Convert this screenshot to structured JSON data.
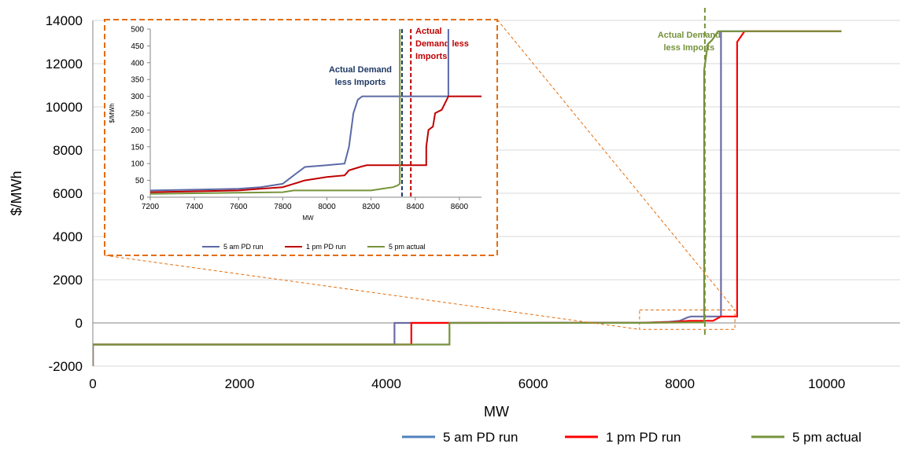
{
  "chart_data": [
    {
      "type": "line",
      "role": "main",
      "xlabel": "MW",
      "ylabel": "$/MWh",
      "xlim": [
        0,
        11000
      ],
      "ylim": [
        -2000,
        14000
      ],
      "xticks": [
        0,
        2000,
        4000,
        6000,
        8000,
        10000
      ],
      "yticks": [
        -2000,
        0,
        2000,
        4000,
        6000,
        8000,
        10000,
        12000,
        14000
      ],
      "grid": "horizontal",
      "legend_position": "bottom-right",
      "colors": {
        "5 am PD run": "#6b6ba6",
        "1 pm PD run": "#ff0000",
        "5 pm actual": "#76923c",
        "inset_box": "#e46c0a"
      },
      "legend": [
        {
          "name": "5 am PD run",
          "color": "#4f81bd"
        },
        {
          "name": "1 pm PD run",
          "color": "#ff0000"
        },
        {
          "name": "5 pm actual",
          "color": "#77933c"
        }
      ],
      "series": [
        {
          "name": "5 am PD run",
          "points": [
            [
              0,
              -2000
            ],
            [
              0,
              -1000
            ],
            [
              4110,
              -1000
            ],
            [
              4110,
              0
            ],
            [
              7500,
              10
            ],
            [
              7850,
              50
            ],
            [
              8000,
              100
            ],
            [
              8100,
              250
            ],
            [
              8150,
              300
            ],
            [
              8560,
              300
            ],
            [
              8560,
              13500
            ],
            [
              10200,
              13500
            ]
          ]
        },
        {
          "name": "1 pm PD run",
          "points": [
            [
              0,
              -2000
            ],
            [
              0,
              -1000
            ],
            [
              4340,
              -1000
            ],
            [
              4340,
              0
            ],
            [
              7500,
              5
            ],
            [
              7900,
              40
            ],
            [
              8130,
              100
            ],
            [
              8450,
              100
            ],
            [
              8560,
              300
            ],
            [
              8780,
              300
            ],
            [
              8780,
              13000
            ],
            [
              8880,
              13500
            ],
            [
              10200,
              13500
            ]
          ]
        },
        {
          "name": "5 pm actual",
          "points": [
            [
              0,
              -2000
            ],
            [
              0,
              -1000
            ],
            [
              4860,
              -1000
            ],
            [
              4860,
              0
            ],
            [
              7500,
              5
            ],
            [
              8300,
              30
            ],
            [
              8330,
              40
            ],
            [
              8330,
              11700
            ],
            [
              8380,
              12900
            ],
            [
              8440,
              13100
            ],
            [
              8520,
              13500
            ],
            [
              10200,
              13500
            ]
          ]
        }
      ],
      "reference_lines": [
        {
          "x": 8340,
          "label_lines": [
            "Actual Demand",
            "less Imports"
          ],
          "color": "#76923c",
          "style": "dashed"
        }
      ],
      "inset_source_box": {
        "xlim": [
          7450,
          8750
        ],
        "ylim": [
          -300,
          600
        ]
      }
    },
    {
      "type": "line",
      "role": "inset",
      "xlabel": "MW",
      "ylabel": "$/MWh",
      "xlim": [
        7200,
        8700
      ],
      "ylim": [
        0,
        500
      ],
      "xticks": [
        7200,
        7400,
        7600,
        7800,
        8000,
        8200,
        8400,
        8600
      ],
      "yticks": [
        0,
        50,
        100,
        150,
        200,
        250,
        300,
        350,
        400,
        450,
        500
      ],
      "grid": "none",
      "legend_position": "bottom",
      "legend": [
        {
          "name": "5 am PD run",
          "color": "#5b6aa6"
        },
        {
          "name": "1 pm PD run",
          "color": "#c00000"
        },
        {
          "name": "5 pm actual",
          "color": "#77933c"
        }
      ],
      "series": [
        {
          "name": "5 am PD run",
          "points": [
            [
              7200,
              20
            ],
            [
              7600,
              25
            ],
            [
              7700,
              30
            ],
            [
              7800,
              40
            ],
            [
              7820,
              50
            ],
            [
              7840,
              60
            ],
            [
              7860,
              70
            ],
            [
              7880,
              80
            ],
            [
              7900,
              90
            ],
            [
              8000,
              95
            ],
            [
              8080,
              100
            ],
            [
              8100,
              150
            ],
            [
              8110,
              200
            ],
            [
              8120,
              250
            ],
            [
              8140,
              290
            ],
            [
              8160,
              300
            ],
            [
              8550,
              300
            ],
            [
              8550,
              500
            ]
          ]
        },
        {
          "name": "1 pm PD run",
          "points": [
            [
              7200,
              15
            ],
            [
              7600,
              20
            ],
            [
              7700,
              25
            ],
            [
              7800,
              30
            ],
            [
              7850,
              40
            ],
            [
              7900,
              50
            ],
            [
              8000,
              60
            ],
            [
              8080,
              65
            ],
            [
              8100,
              80
            ],
            [
              8150,
              90
            ],
            [
              8180,
              95
            ],
            [
              8450,
              95
            ],
            [
              8450,
              150
            ],
            [
              8460,
              200
            ],
            [
              8480,
              210
            ],
            [
              8490,
              250
            ],
            [
              8520,
              260
            ],
            [
              8550,
              300
            ],
            [
              8700,
              300
            ]
          ]
        },
        {
          "name": "5 pm actual",
          "points": [
            [
              7200,
              10
            ],
            [
              7800,
              15
            ],
            [
              7850,
              20
            ],
            [
              8200,
              20
            ],
            [
              8250,
              25
            ],
            [
              8300,
              30
            ],
            [
              8320,
              35
            ],
            [
              8330,
              40
            ],
            [
              8330,
              500
            ]
          ]
        }
      ],
      "reference_lines": [
        {
          "x": 8340,
          "label_lines": [
            "Actual Demand",
            "less Imports"
          ],
          "color": "#1f3864",
          "style": "dashed"
        },
        {
          "x": 8380,
          "label_lines": [
            "Actual",
            "Demand less",
            "Imports"
          ],
          "color": "#c00000",
          "style": "dashed"
        }
      ]
    }
  ]
}
